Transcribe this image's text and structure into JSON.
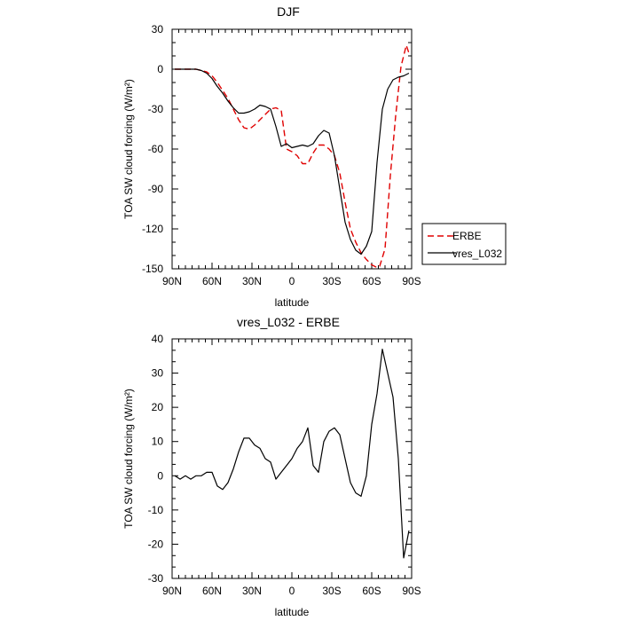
{
  "chart_data": [
    {
      "type": "line",
      "title": "DJF",
      "xlabel": "latitude",
      "ylabel": "TOA SW cloud forcing (W/m²)",
      "xlim": [
        90,
        -90
      ],
      "ylim": [
        -150,
        30
      ],
      "xticks": [
        90,
        60,
        30,
        0,
        -30,
        -60,
        -90
      ],
      "xtick_labels": [
        "90N",
        "60N",
        "30N",
        "0",
        "30S",
        "60S",
        "90S"
      ],
      "yticks": [
        30,
        0,
        -30,
        -60,
        -90,
        -120,
        -150
      ],
      "ytick_labels": [
        "30",
        "0",
        "-30",
        "-60",
        "-90",
        "-120",
        "-150"
      ],
      "legend": "right",
      "series": [
        {
          "name": "ERBE",
          "color": "#e00000",
          "dash": "dashed",
          "x": [
            88,
            84,
            80,
            76,
            72,
            68,
            64,
            60,
            56,
            52,
            48,
            44,
            40,
            36,
            32,
            28,
            24,
            20,
            16,
            12,
            8,
            4,
            0,
            -4,
            -8,
            -12,
            -16,
            -20,
            -24,
            -28,
            -32,
            -36,
            -40,
            -44,
            -48,
            -52,
            -56,
            -60,
            -64,
            -66,
            -70,
            -74,
            -78,
            -82,
            -86,
            -88
          ],
          "y": [
            0,
            0,
            0,
            0,
            0,
            -1,
            -2,
            -5,
            -10,
            -16,
            -22,
            -30,
            -38,
            -44,
            -45,
            -42,
            -38,
            -34,
            -30,
            -29,
            -31,
            -60,
            -62,
            -65,
            -71,
            -71,
            -63,
            -57,
            -57,
            -60,
            -65,
            -78,
            -100,
            -120,
            -130,
            -138,
            -143,
            -147,
            -149,
            -148,
            -135,
            -80,
            -35,
            2,
            18,
            12
          ]
        },
        {
          "name": "vres_L032",
          "color": "#000000",
          "dash": "solid",
          "x": [
            88,
            84,
            80,
            76,
            72,
            68,
            64,
            60,
            56,
            52,
            48,
            44,
            40,
            36,
            32,
            28,
            24,
            20,
            16,
            12,
            8,
            4,
            0,
            -4,
            -8,
            -12,
            -16,
            -20,
            -24,
            -28,
            -32,
            -36,
            -40,
            -44,
            -48,
            -52,
            -56,
            -60,
            -64,
            -68,
            -72,
            -76,
            -80,
            -84,
            -88
          ],
          "y": [
            0,
            0,
            0,
            0,
            0,
            -1,
            -3,
            -7,
            -13,
            -18,
            -24,
            -29,
            -33,
            -33,
            -32,
            -30,
            -27,
            -28,
            -30,
            -43,
            -58,
            -56,
            -59,
            -58,
            -57,
            -58,
            -56,
            -50,
            -46,
            -48,
            -65,
            -90,
            -115,
            -128,
            -136,
            -139,
            -133,
            -122,
            -70,
            -30,
            -15,
            -8,
            -6,
            -5,
            -3
          ]
        }
      ]
    },
    {
      "type": "line",
      "title": "vres_L032 - ERBE",
      "xlabel": "latitude",
      "ylabel": "TOA SW cloud forcing (W/m²)",
      "xlim": [
        90,
        -90
      ],
      "ylim": [
        -30,
        40
      ],
      "xticks": [
        90,
        60,
        30,
        0,
        -30,
        -60,
        -90
      ],
      "xtick_labels": [
        "90N",
        "60N",
        "30N",
        "0",
        "30S",
        "60S",
        "90S"
      ],
      "yticks": [
        40,
        30,
        20,
        10,
        0,
        -10,
        -20,
        -30
      ],
      "ytick_labels": [
        "40",
        "30",
        "20",
        "10",
        "0",
        "-10",
        "-20",
        "-30"
      ],
      "series": [
        {
          "color": "#000000",
          "dash": "solid",
          "x": [
            88,
            84,
            80,
            76,
            72,
            68,
            64,
            60,
            56,
            52,
            48,
            44,
            40,
            36,
            32,
            28,
            24,
            20,
            16,
            12,
            8,
            4,
            0,
            -4,
            -8,
            -12,
            -16,
            -20,
            -24,
            -28,
            -32,
            -36,
            -40,
            -44,
            -48,
            -52,
            -56,
            -60,
            -64,
            -68,
            -72,
            -76,
            -80,
            -84,
            -88
          ],
          "y": [
            0,
            -1,
            0,
            -1,
            0,
            0,
            1,
            1,
            -3,
            -4,
            -2,
            2,
            7,
            11,
            11,
            9,
            8,
            5,
            4,
            -1,
            1,
            3,
            5,
            8,
            10,
            14,
            3,
            1,
            10,
            13,
            14,
            12,
            5,
            -2,
            -5,
            -6,
            0,
            15,
            24,
            37,
            30,
            23,
            5,
            -24,
            -16
          ]
        }
      ]
    }
  ]
}
